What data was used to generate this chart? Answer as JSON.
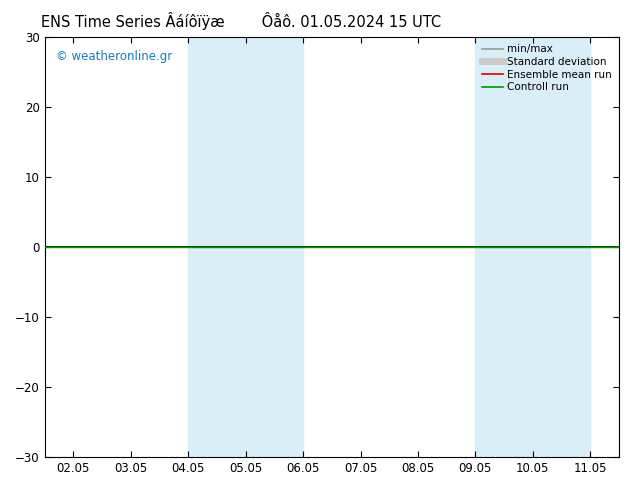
{
  "title_left": "ENS Time Series Âáíôïÿæ",
  "title_right": "Ôåô. 01.05.2024 15 UTC",
  "ylim": [
    -30,
    30
  ],
  "yticks": [
    -30,
    -20,
    -10,
    0,
    10,
    20,
    30
  ],
  "x_labels": [
    "02.05",
    "03.05",
    "04.05",
    "05.05",
    "06.05",
    "07.05",
    "08.05",
    "09.05",
    "10.05",
    "11.05"
  ],
  "shaded_regions": [
    {
      "xmin": 2,
      "xmax": 4,
      "color": "#daeef8"
    },
    {
      "xmin": 7,
      "xmax": 9,
      "color": "#daeef8"
    }
  ],
  "watermark": "© weatheronline.gr",
  "watermark_color": "#1a7abf",
  "background_color": "#ffffff",
  "plot_bg_color": "#ffffff",
  "legend_items": [
    {
      "label": "min/max",
      "color": "#999999",
      "lw": 1.2
    },
    {
      "label": "Standard deviation",
      "color": "#cccccc",
      "lw": 5
    },
    {
      "label": "Ensemble mean run",
      "color": "#dd0000",
      "lw": 1.2
    },
    {
      "label": "Controll run",
      "color": "#009900",
      "lw": 1.2
    }
  ],
  "zero_line_color": "#000000",
  "controll_run_color": "#009900",
  "border_color": "#000000",
  "tick_label_fontsize": 8.5,
  "title_fontsize": 10.5
}
